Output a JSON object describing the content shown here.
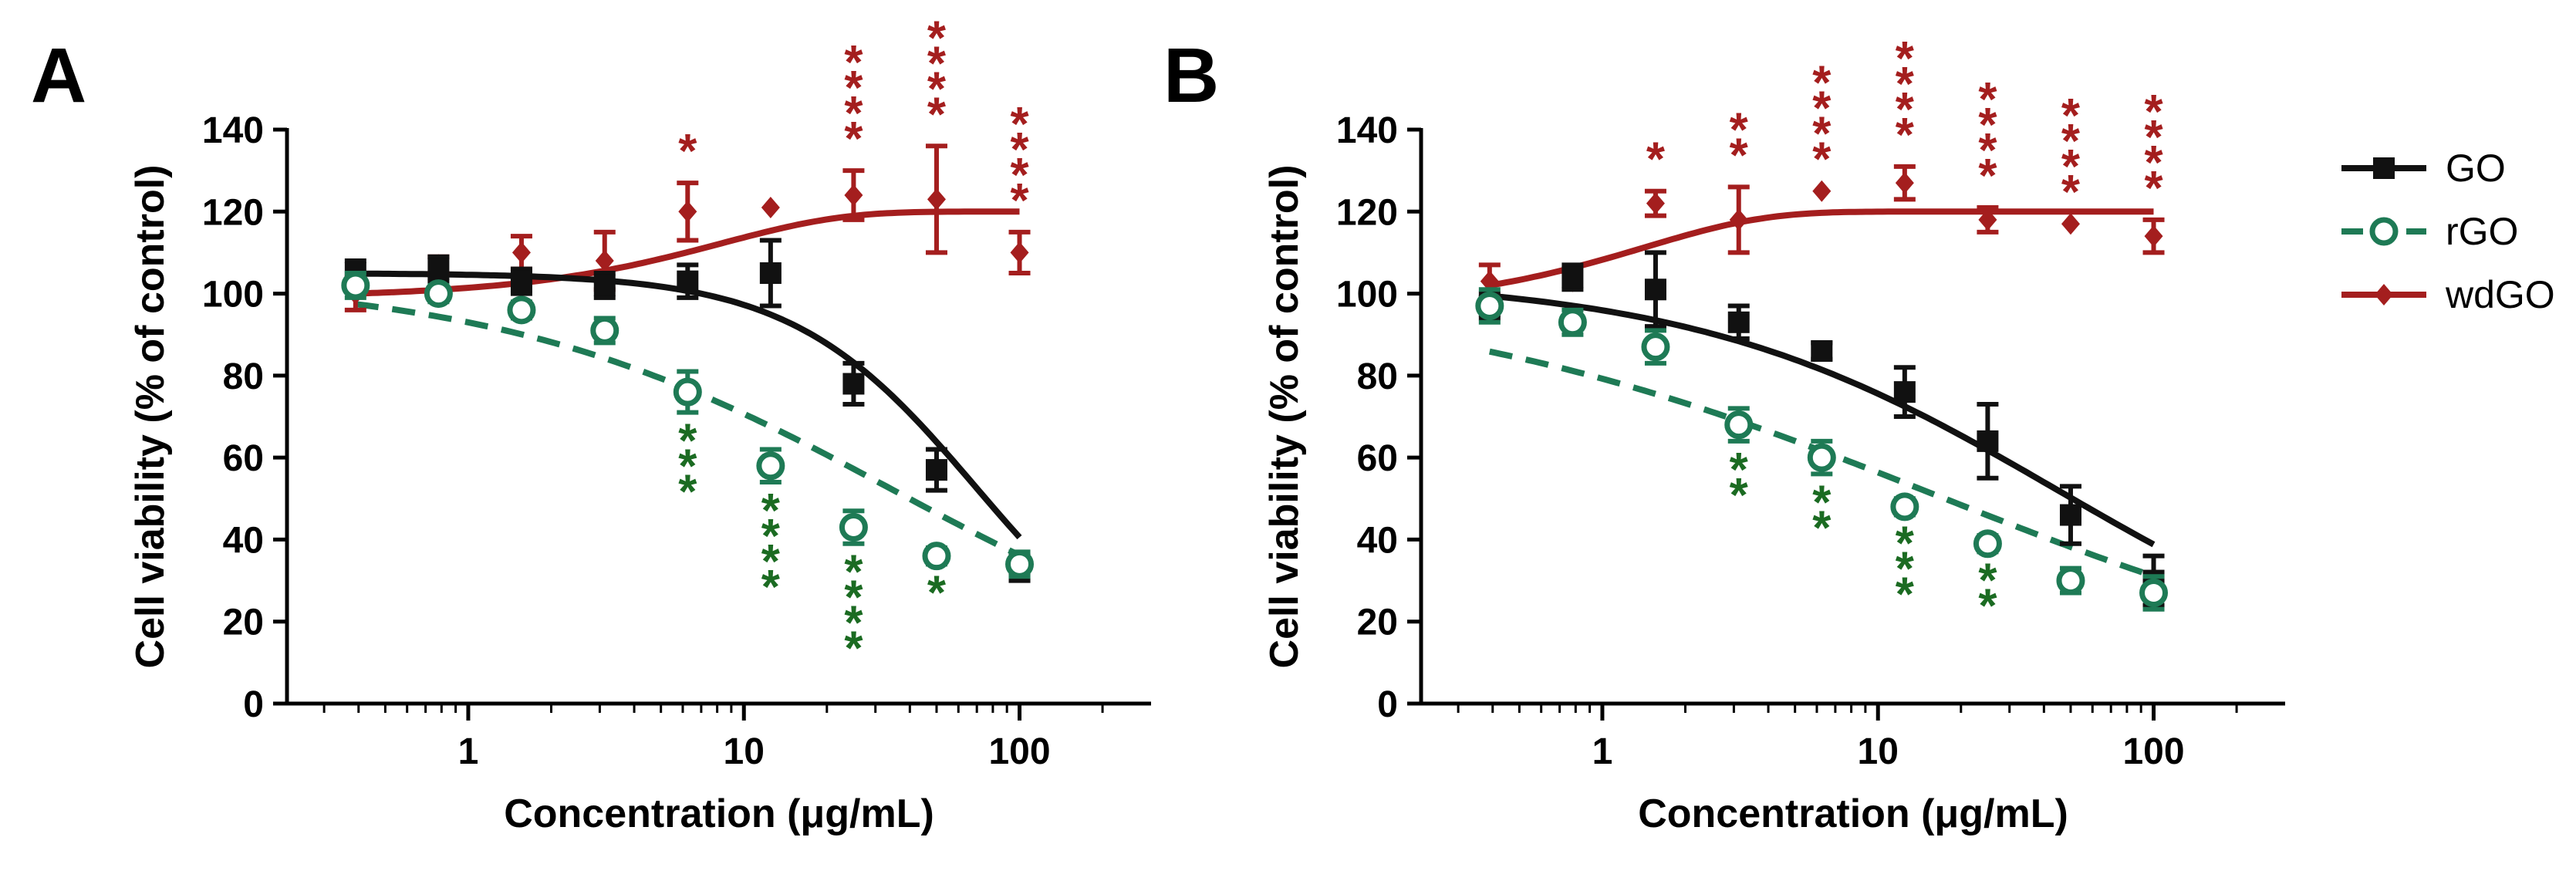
{
  "colors": {
    "GO": "#111111",
    "rGO": "#1e7a55",
    "wdGO": "#a41e1e",
    "rGO_star": "#1b6b22"
  },
  "legend": [
    {
      "name": "GO",
      "marker": "square",
      "line": "solid"
    },
    {
      "name": "rGO",
      "marker": "open-circle",
      "line": "dashed"
    },
    {
      "name": "wdGO",
      "marker": "diamond",
      "line": "solid"
    }
  ],
  "chart_data": [
    {
      "panel": "A",
      "type": "scatter",
      "xscale": "log",
      "xlim": [
        0.22,
        300
      ],
      "ylim": [
        0,
        140
      ],
      "xticks": [
        1,
        10,
        100
      ],
      "xtick_labels": [
        "1",
        "10",
        "100"
      ],
      "yticks": [
        0,
        20,
        40,
        60,
        80,
        100,
        120,
        140
      ],
      "ytick_labels": [
        "0",
        "20",
        "40",
        "60",
        "80",
        "100",
        "120",
        "140"
      ],
      "xlabel": "Concentration (μg/mL)",
      "ylabel": "Cell viability (% of control)",
      "x": [
        0.39,
        0.78,
        1.56,
        3.125,
        6.25,
        12.5,
        25,
        50,
        100
      ],
      "series": [
        {
          "name": "GO",
          "values": [
            105,
            106,
            103,
            102,
            103,
            105,
            78,
            57,
            33
          ],
          "errors": [
            3,
            3,
            3,
            3,
            4,
            8,
            5,
            5,
            3
          ],
          "fit_type": "sigmoid",
          "fit": {
            "top": 105,
            "bottom": 0,
            "ec50": 70,
            "hill": 1.3
          }
        },
        {
          "name": "rGO",
          "values": [
            102,
            100,
            96,
            91,
            76,
            58,
            43,
            36,
            34
          ],
          "errors": [
            3,
            2,
            2,
            3,
            5,
            4,
            4,
            2,
            3
          ],
          "fit_type": "sigmoid",
          "fit": {
            "top": 104,
            "bottom": 0,
            "ec50": 35,
            "hill": 0.6
          }
        },
        {
          "name": "wdGO",
          "values": [
            100,
            107,
            110,
            108,
            120,
            121,
            124,
            123,
            110
          ],
          "errors": [
            4,
            2,
            4,
            7,
            7,
            0,
            6,
            13,
            5
          ],
          "fit_type": "rise",
          "fit": {
            "start": 100,
            "plateau": 120,
            "k": 0.12
          }
        }
      ],
      "significance": [
        {
          "series": "wdGO",
          "x": 6.25,
          "label": "*"
        },
        {
          "series": "wdGO",
          "x": 25,
          "label": "****"
        },
        {
          "series": "wdGO",
          "x": 50,
          "label": "****"
        },
        {
          "series": "wdGO",
          "x": 100,
          "label": "****"
        },
        {
          "series": "rGO",
          "x": 6.25,
          "label": "***"
        },
        {
          "series": "rGO",
          "x": 12.5,
          "label": "****"
        },
        {
          "series": "rGO",
          "x": 25,
          "label": "****"
        },
        {
          "series": "rGO",
          "x": 50,
          "label": "*"
        }
      ]
    },
    {
      "panel": "B",
      "type": "scatter",
      "xscale": "log",
      "xlim": [
        0.22,
        300
      ],
      "ylim": [
        0,
        140
      ],
      "xticks": [
        1,
        10,
        100
      ],
      "xtick_labels": [
        "1",
        "10",
        "100"
      ],
      "yticks": [
        0,
        20,
        40,
        60,
        80,
        100,
        120,
        140
      ],
      "ytick_labels": [
        "0",
        "20",
        "40",
        "60",
        "80",
        "100",
        "120",
        "140"
      ],
      "xlabel": "Concentration (μg/mL)",
      "ylabel": "Cell viability (% of control)",
      "x": [
        0.39,
        0.78,
        1.56,
        3.125,
        6.25,
        12.5,
        25,
        50,
        100
      ],
      "series": [
        {
          "name": "GO",
          "values": [
            97,
            104,
            101,
            93,
            86,
            76,
            64,
            46,
            30
          ],
          "errors": [
            3,
            3,
            9,
            4,
            2,
            6,
            9,
            7,
            6
          ],
          "fit_type": "sigmoid",
          "fit": {
            "top": 104,
            "bottom": 0,
            "ec50": 45,
            "hill": 0.65
          }
        },
        {
          "name": "rGO",
          "values": [
            97,
            93,
            87,
            68,
            60,
            48,
            39,
            30,
            27
          ],
          "errors": [
            4,
            3,
            4,
            4,
            4,
            2,
            2,
            3,
            4
          ],
          "fit_type": "sigmoid",
          "fit": {
            "top": 102,
            "bottom": 0,
            "ec50": 16,
            "hill": 0.45
          }
        },
        {
          "name": "wdGO",
          "values": [
            103,
            103,
            122,
            118,
            125,
            127,
            118,
            117,
            114
          ],
          "errors": [
            4,
            0,
            3,
            8,
            0,
            4,
            3,
            0,
            4
          ],
          "fit_type": "rise",
          "fit": {
            "start": 102,
            "plateau": 120,
            "k": 0.7
          }
        }
      ],
      "significance": [
        {
          "series": "wdGO",
          "x": 1.56,
          "label": "*"
        },
        {
          "series": "wdGO",
          "x": 3.125,
          "label": "**"
        },
        {
          "series": "wdGO",
          "x": 6.25,
          "label": "****"
        },
        {
          "series": "wdGO",
          "x": 12.5,
          "label": "****"
        },
        {
          "series": "wdGO",
          "x": 25,
          "label": "****"
        },
        {
          "series": "wdGO",
          "x": 50,
          "label": "****"
        },
        {
          "series": "wdGO",
          "x": 100,
          "label": "****"
        },
        {
          "series": "rGO",
          "x": 3.125,
          "label": "**"
        },
        {
          "series": "rGO",
          "x": 6.25,
          "label": "**"
        },
        {
          "series": "rGO",
          "x": 12.5,
          "label": "***"
        },
        {
          "series": "rGO",
          "x": 25,
          "label": "**"
        }
      ]
    }
  ]
}
